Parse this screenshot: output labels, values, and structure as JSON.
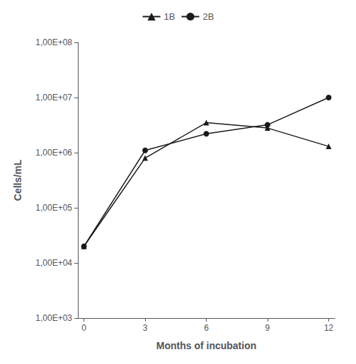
{
  "chart_data": {
    "type": "line",
    "x": [
      0,
      3,
      6,
      9,
      12
    ],
    "series": [
      {
        "name": "1B",
        "color": "#1a1a1a",
        "marker": "triangle",
        "values": [
          20000,
          800000,
          3500000,
          2800000,
          1300000
        ]
      },
      {
        "name": "2B",
        "color": "#1a1a1a",
        "marker": "circle",
        "values": [
          20000,
          1100000,
          2200000,
          3200000,
          10000000
        ]
      }
    ],
    "xlabel": "Months of incubation",
    "ylabel": "Cells/mL",
    "xlim": [
      -0.3,
      12.3
    ],
    "xticks": [
      0,
      3,
      6,
      9,
      12
    ],
    "ylim": [
      1000,
      100000000
    ],
    "yticks": [
      {
        "value": 1000,
        "label": "1,00E+03"
      },
      {
        "value": 10000,
        "label": "1,00E+04"
      },
      {
        "value": 100000,
        "label": "1,00E+05"
      },
      {
        "value": 1000000,
        "label": "1,00E+06"
      },
      {
        "value": 10000000,
        "label": "1,00E+07"
      },
      {
        "value": 100000000,
        "label": "1,00E+08"
      }
    ],
    "log": "y",
    "grid": false,
    "legend": "top"
  }
}
